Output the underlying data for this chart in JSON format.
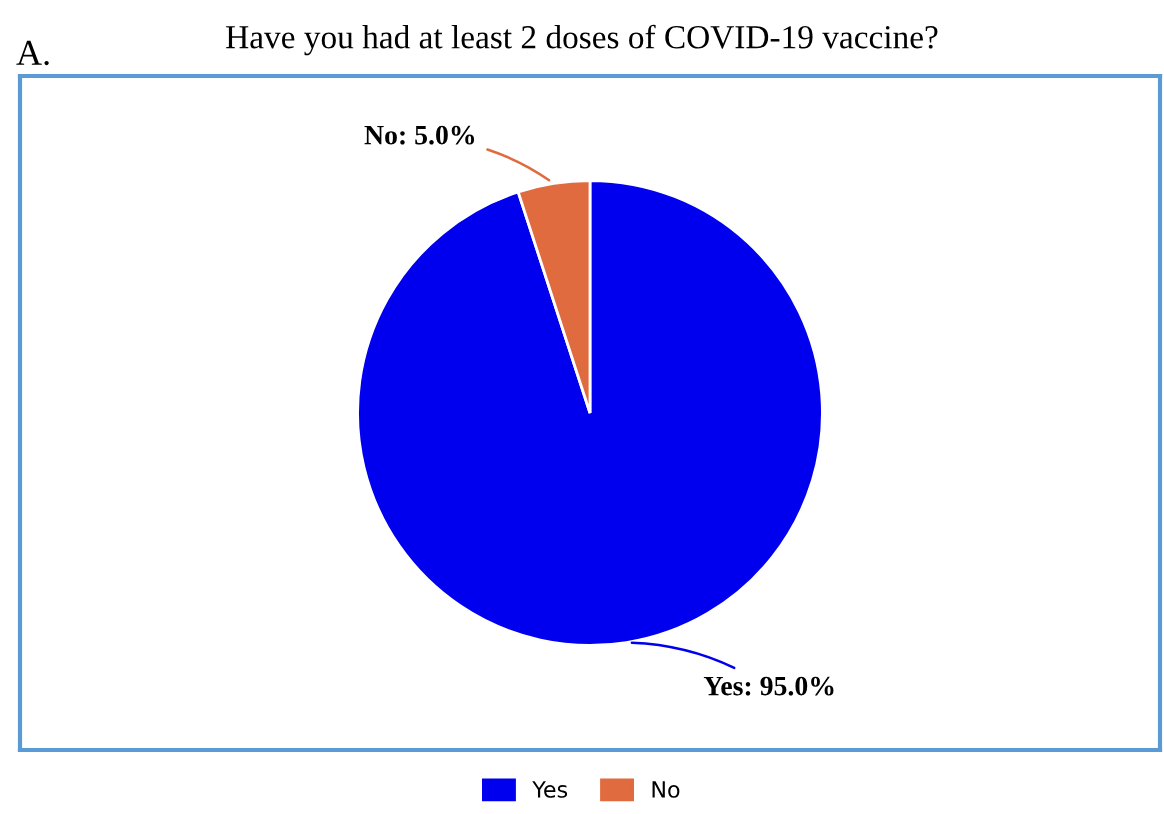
{
  "chart_data": {
    "type": "pie",
    "title": "Have you had at least 2 doses of COVID-19 vaccine?",
    "annotations": [
      "A."
    ],
    "categories": [
      "Yes",
      "No"
    ],
    "values": [
      95.0,
      5.0
    ],
    "colors": [
      "#0000ee",
      "#e06b3f"
    ],
    "value_labels": [
      "Yes: 95.0%",
      "No: 5.0%"
    ],
    "legend": "bottom"
  }
}
